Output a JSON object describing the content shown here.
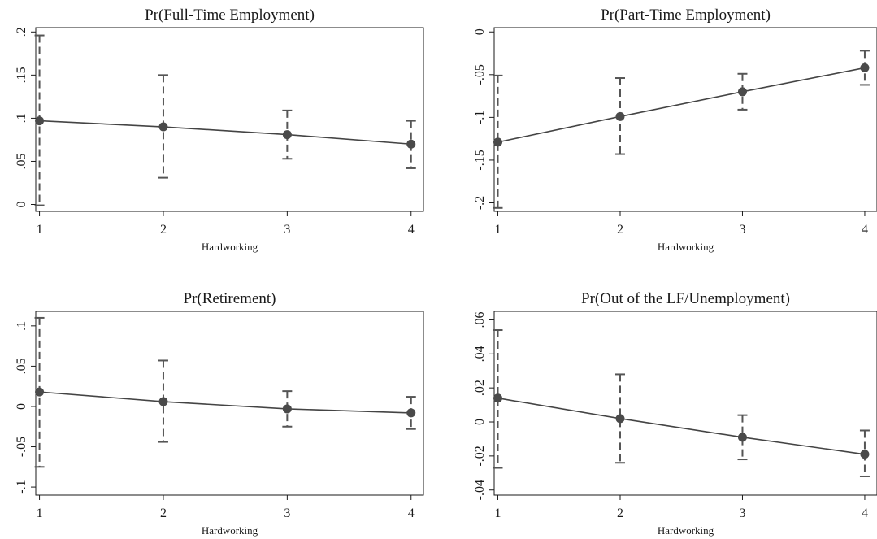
{
  "chart_data": [
    {
      "type": "line",
      "title": "Pr(Full-Time Employment)",
      "xlabel": "Hardworking",
      "ylabel": "",
      "x": [
        1,
        2,
        3,
        4
      ],
      "x_ticks": [
        "1",
        "2",
        "3",
        "4"
      ],
      "xlim": [
        0.97,
        4.1
      ],
      "ylim": [
        -0.008,
        0.205
      ],
      "y_ticks": [
        0,
        0.05,
        0.1,
        0.15,
        0.2
      ],
      "y_tick_labels": [
        "0",
        ".05",
        ".1",
        ".15",
        ".2"
      ],
      "series": [
        {
          "values": [
            0.097,
            0.09,
            0.081,
            0.07
          ],
          "ci_low": [
            -0.001,
            0.031,
            0.053,
            0.042
          ],
          "ci_high": [
            0.196,
            0.15,
            0.109,
            0.097
          ]
        }
      ],
      "grid": false
    },
    {
      "type": "line",
      "title": "Pr(Part-Time Employment)",
      "xlabel": "Hardworking",
      "ylabel": "",
      "x": [
        1,
        2,
        3,
        4
      ],
      "x_ticks": [
        "1",
        "2",
        "3",
        "4"
      ],
      "xlim": [
        0.97,
        4.1
      ],
      "ylim": [
        -0.21,
        0.005
      ],
      "y_ticks": [
        -0.2,
        -0.15,
        -0.1,
        -0.05,
        0
      ],
      "y_tick_labels": [
        "-.2",
        "-.15",
        "-.1",
        "-.05",
        "0"
      ],
      "series": [
        {
          "values": [
            -0.129,
            -0.099,
            -0.07,
            -0.042
          ],
          "ci_low": [
            -0.206,
            -0.143,
            -0.091,
            -0.062
          ],
          "ci_high": [
            -0.051,
            -0.054,
            -0.049,
            -0.022
          ]
        }
      ],
      "grid": false
    },
    {
      "type": "line",
      "title": "Pr(Retirement)",
      "xlabel": "Hardworking",
      "ylabel": "",
      "x": [
        1,
        2,
        3,
        4
      ],
      "x_ticks": [
        "1",
        "2",
        "3",
        "4"
      ],
      "xlim": [
        0.97,
        4.1
      ],
      "ylim": [
        -0.11,
        0.118
      ],
      "y_ticks": [
        -0.1,
        -0.05,
        0,
        0.05,
        0.1
      ],
      "y_tick_labels": [
        "-.1",
        "-.05",
        "0",
        ".05",
        ".1"
      ],
      "series": [
        {
          "values": [
            0.018,
            0.006,
            -0.003,
            -0.008
          ],
          "ci_low": [
            -0.075,
            -0.044,
            -0.025,
            -0.028
          ],
          "ci_high": [
            0.11,
            0.057,
            0.019,
            0.012
          ]
        }
      ],
      "grid": false
    },
    {
      "type": "line",
      "title": "Pr(Out of the LF/Unemployment)",
      "xlabel": "Hardworking",
      "ylabel": "",
      "x": [
        1,
        2,
        3,
        4
      ],
      "x_ticks": [
        "1",
        "2",
        "3",
        "4"
      ],
      "xlim": [
        0.97,
        4.1
      ],
      "ylim": [
        -0.043,
        0.065
      ],
      "y_ticks": [
        -0.04,
        -0.02,
        0,
        0.02,
        0.04,
        0.06
      ],
      "y_tick_labels": [
        "-.04",
        "-.02",
        "0",
        ".02",
        ".04",
        ".06"
      ],
      "series": [
        {
          "values": [
            0.014,
            0.002,
            -0.009,
            -0.019
          ],
          "ci_low": [
            -0.027,
            -0.024,
            -0.022,
            -0.032
          ],
          "ci_high": [
            0.054,
            0.028,
            0.004,
            -0.005
          ]
        }
      ],
      "grid": false
    }
  ]
}
